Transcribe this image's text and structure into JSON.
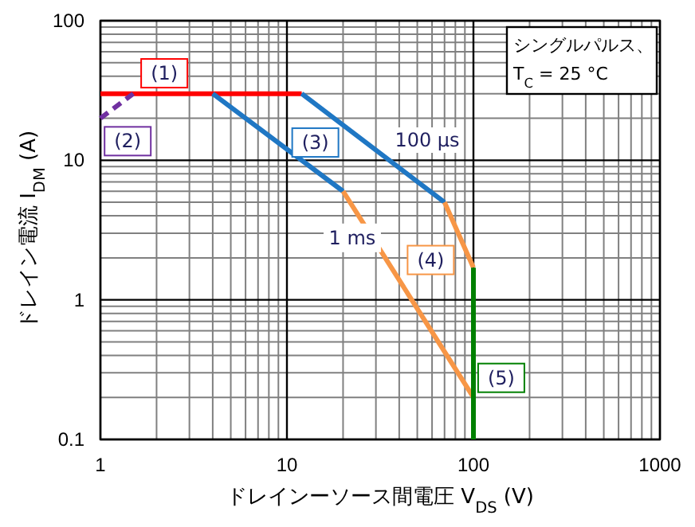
{
  "chart_data": {
    "type": "line",
    "xlabel": "ドレインーソース間電圧 V$_{DS}$ (V)",
    "ylabel": "ドレイン電流 I$_{DM}$ (A)",
    "log": "xy",
    "grid": true,
    "marker": "none",
    "xlim": [
      1,
      1000
    ],
    "ylim": [
      0.1,
      100
    ],
    "xticks": [
      1,
      10,
      100,
      1000
    ],
    "yticks": [
      0.1,
      1,
      10,
      100
    ],
    "series": [
      {
        "color": "#ff0000",
        "x": [
          1,
          12
        ],
        "values": [
          30,
          30
        ],
        "line_style": "solid"
      },
      {
        "color": "#7030a0",
        "x": [
          1,
          1.5
        ],
        "values": [
          20,
          30
        ],
        "line_style": "dashed"
      },
      {
        "color": "#1f77c4",
        "x": [
          4,
          20,
          null,
          12,
          70
        ],
        "values": [
          30,
          6,
          null,
          30,
          5
        ],
        "line_style": "solid"
      },
      {
        "color": "#f79646",
        "x": [
          20,
          100,
          null,
          70,
          100
        ],
        "values": [
          6,
          0.2,
          null,
          5,
          1.7
        ],
        "line_style": "solid"
      },
      {
        "color": "#008000",
        "x": [
          100,
          100
        ],
        "values": [
          0.1,
          1.7
        ],
        "line_style": "solid"
      }
    ],
    "annotations": [
      {
        "text": "(1)",
        "x": 2.2,
        "y": 42
      },
      {
        "text": "(2)",
        "x": 1.4,
        "y": 13.7
      },
      {
        "text": "(3)",
        "x": 14.2,
        "y": 13.4
      },
      {
        "text": "(4)",
        "x": 59,
        "y": 1.93
      },
      {
        "text": "(5)",
        "x": 141,
        "y": 0.276
      },
      "100 µs",
      {
        "text": "1 ms",
        "x": 22.4,
        "y": 2.78
      },
      "シングルパルス、",
      "T$_{C}$ = 25 °C"
    ]
  }
}
